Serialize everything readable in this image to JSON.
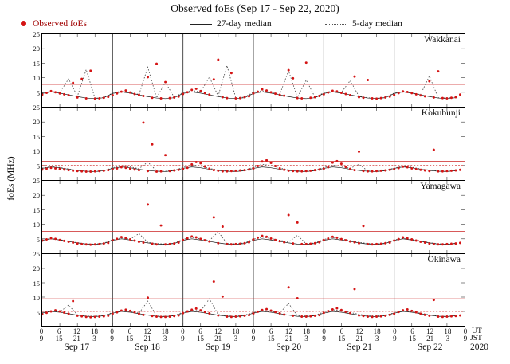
{
  "title": "Observed foEs (Sep 17 - Sep 22, 2020)",
  "legend": {
    "observed": "Observed foEs",
    "median27": "27-day median",
    "median5": "5-day median"
  },
  "y_axis": {
    "label": "foEs (MHz)",
    "ticks": [
      "25",
      "20",
      "15",
      "10",
      "5"
    ],
    "min": 0,
    "max": 25
  },
  "x_axis": {
    "hours_span": 144,
    "tick_step": 6,
    "ut_row": [
      "0",
      "6",
      "12",
      "18",
      "0",
      "6",
      "12",
      "18",
      "0",
      "6",
      "12",
      "18",
      "0",
      "6",
      "12",
      "18",
      "0",
      "6",
      "12",
      "18",
      "0",
      "6",
      "12",
      "18",
      "0"
    ],
    "jst_row": [
      "9",
      "15",
      "21",
      "3",
      "9",
      "15",
      "21",
      "3",
      "9",
      "15",
      "21",
      "3",
      "9",
      "15",
      "21",
      "3",
      "9",
      "15",
      "21",
      "3",
      "9",
      "15",
      "21",
      "3",
      "9"
    ],
    "dates": [
      "Sep 17",
      "Sep 18",
      "Sep 19",
      "Sep 20",
      "Sep 21",
      "Sep 22"
    ],
    "ut_caption": "UT",
    "jst_caption": "JST",
    "year": "2020"
  },
  "colors": {
    "observed": "#d41414",
    "median27": "#1a1a1a",
    "median5": "#555555",
    "threshold": "#cc2222",
    "dayline": "#3a3a3a",
    "tick": "#333333"
  },
  "chart_data": [
    {
      "type": "scatter+line",
      "station": "Wakkanai",
      "observed_interval_h": 1.5,
      "observed_y": [
        4.2,
        4.8,
        5.4,
        5.0,
        4.6,
        4.3,
        4.0,
        8.2,
        3.2,
        9.6,
        2.9,
        12.4,
        2.8,
        2.9,
        3.1,
        3.4,
        4.0,
        4.6,
        5.2,
        5.6,
        4.9,
        4.4,
        4.1,
        3.7,
        10.2,
        3.1,
        14.8,
        2.9,
        8.5,
        3.0,
        3.2,
        3.5,
        4.4,
        5.0,
        5.8,
        6.2,
        5.4,
        4.7,
        4.2,
        9.4,
        16.2,
        3.3,
        3.0,
        11.6,
        2.9,
        3.0,
        3.3,
        3.6,
        4.6,
        5.2,
        6.0,
        5.6,
        5.0,
        4.5,
        4.1,
        3.8,
        12.6,
        9.8,
        3.0,
        2.9,
        15.2,
        3.1,
        3.3,
        3.7,
        4.3,
        4.9,
        5.5,
        5.3,
        4.8,
        4.4,
        4.0,
        10.4,
        3.3,
        3.1,
        9.2,
        2.9,
        2.8,
        3.0,
        3.2,
        3.5,
        4.1,
        4.7,
        5.3,
        5.1,
        4.7,
        4.3,
        3.9,
        3.6,
        8.8,
        3.2,
        12.2,
        3.0,
        2.9,
        3.1,
        3.3,
        4.2
      ],
      "median_interval_h": 3,
      "median27_y": [
        4.6,
        5.1,
        4.7,
        4.1,
        3.5,
        3.0,
        2.8,
        3.1,
        4.6,
        5.1,
        4.7,
        4.1,
        3.5,
        3.0,
        2.8,
        3.1,
        4.6,
        5.1,
        4.7,
        4.1,
        3.5,
        3.0,
        2.8,
        3.1,
        4.6,
        5.1,
        4.7,
        4.1,
        3.5,
        3.0,
        2.8,
        3.1,
        4.6,
        5.1,
        4.7,
        4.1,
        3.5,
        3.0,
        2.8,
        3.1,
        4.6,
        5.1,
        4.7,
        4.1,
        3.5,
        3.0,
        2.8,
        3.1
      ],
      "median5_y": [
        4.8,
        5.3,
        4.9,
        9.6,
        3.6,
        12.8,
        2.9,
        3.2,
        4.7,
        5.4,
        5.0,
        4.2,
        13.6,
        3.1,
        8.4,
        3.3,
        4.9,
        5.6,
        5.1,
        10.2,
        3.7,
        14.2,
        3.0,
        3.3,
        5.0,
        5.5,
        5.0,
        4.3,
        12.4,
        3.2,
        9.2,
        3.3,
        4.8,
        5.4,
        4.9,
        9.0,
        3.6,
        3.1,
        2.9,
        3.2,
        4.7,
        5.2,
        4.8,
        4.2,
        10.6,
        3.1,
        3.0,
        3.3
      ],
      "thresholds_solid": [
        7.7,
        9.2
      ],
      "thresholds_dashed": []
    },
    {
      "type": "scatter+line",
      "station": "Kokubunji",
      "observed_interval_h": 1.5,
      "observed_y": [
        3.6,
        3.9,
        4.2,
        4.0,
        3.8,
        3.6,
        3.4,
        3.2,
        3.1,
        3.0,
        2.9,
        2.9,
        3.0,
        3.1,
        3.2,
        3.4,
        3.7,
        4.0,
        4.4,
        4.2,
        3.9,
        3.6,
        3.4,
        19.8,
        3.1,
        12.3,
        2.9,
        3.0,
        8.6,
        3.1,
        3.3,
        3.5,
        3.8,
        4.2,
        5.4,
        6.2,
        5.8,
        4.6,
        3.9,
        3.4,
        3.2,
        3.0,
        3.0,
        3.1,
        3.2,
        3.3,
        3.4,
        3.6,
        4.0,
        4.8,
        6.4,
        6.8,
        5.9,
        4.8,
        4.0,
        3.5,
        3.2,
        3.1,
        3.0,
        3.0,
        3.1,
        3.2,
        3.4,
        3.6,
        3.9,
        4.4,
        6.0,
        6.5,
        5.6,
        4.5,
        3.8,
        3.4,
        9.8,
        3.1,
        3.0,
        3.0,
        3.1,
        3.2,
        3.3,
        3.5,
        3.7,
        4.1,
        4.6,
        4.4,
        4.0,
        3.7,
        3.5,
        3.3,
        3.1,
        10.4,
        3.0,
        3.0,
        3.1,
        3.2,
        3.3,
        3.5
      ],
      "median_interval_h": 3,
      "median27_y": [
        4.0,
        4.5,
        4.2,
        3.7,
        3.3,
        3.0,
        2.9,
        3.2,
        4.0,
        4.5,
        4.2,
        3.7,
        3.3,
        3.0,
        2.9,
        3.2,
        4.0,
        4.5,
        4.2,
        3.7,
        3.3,
        3.0,
        2.9,
        3.2,
        4.0,
        4.5,
        4.2,
        3.7,
        3.3,
        3.0,
        2.9,
        3.2,
        4.0,
        4.5,
        4.2,
        3.7,
        3.3,
        3.0,
        2.9,
        3.2,
        4.0,
        4.5,
        4.2,
        3.7,
        3.3,
        3.0,
        2.9,
        3.2
      ],
      "median5_y": [
        4.1,
        4.6,
        4.3,
        3.8,
        3.3,
        3.0,
        2.9,
        3.2,
        4.2,
        4.8,
        4.5,
        3.9,
        6.2,
        3.1,
        3.0,
        3.3,
        4.3,
        5.2,
        4.8,
        4.0,
        3.4,
        3.1,
        3.0,
        3.3,
        4.4,
        5.4,
        5.0,
        4.1,
        3.5,
        3.2,
        3.0,
        3.3,
        4.3,
        5.1,
        4.7,
        4.0,
        5.4,
        3.1,
        3.0,
        3.3,
        4.1,
        4.7,
        4.4,
        3.8,
        3.4,
        3.1,
        3.0,
        3.2
      ],
      "thresholds_solid": [
        6.4
      ],
      "thresholds_dashed": [
        5.0
      ]
    },
    {
      "type": "scatter+line",
      "station": "Yamagawa",
      "observed_interval_h": 1.5,
      "observed_y": [
        4.4,
        4.8,
        5.2,
        5.0,
        4.6,
        4.3,
        4.0,
        3.7,
        3.4,
        3.2,
        3.1,
        3.0,
        3.1,
        3.2,
        3.4,
        3.6,
        4.5,
        5.0,
        5.6,
        5.3,
        4.8,
        4.4,
        4.0,
        3.7,
        16.8,
        3.3,
        3.1,
        9.6,
        3.1,
        3.2,
        3.4,
        3.7,
        4.6,
        5.2,
        5.8,
        5.5,
        5.0,
        4.5,
        4.1,
        12.4,
        3.5,
        9.2,
        3.2,
        3.1,
        3.2,
        3.3,
        3.5,
        3.8,
        4.8,
        5.4,
        6.0,
        5.7,
        5.1,
        4.6,
        4.2,
        3.8,
        13.2,
        3.4,
        10.6,
        3.2,
        3.2,
        3.3,
        3.5,
        3.8,
        4.6,
        5.1,
        5.7,
        5.4,
        4.9,
        4.5,
        4.1,
        3.8,
        3.5,
        9.4,
        3.2,
        3.1,
        3.2,
        3.3,
        3.5,
        3.7,
        4.4,
        4.9,
        5.5,
        5.2,
        4.8,
        4.4,
        4.0,
        3.7,
        3.4,
        3.2,
        3.1,
        3.1,
        3.2,
        3.3,
        3.4,
        3.6
      ],
      "median_interval_h": 3,
      "median27_y": [
        4.5,
        5.0,
        4.6,
        4.1,
        3.6,
        3.2,
        3.1,
        3.4,
        4.5,
        5.0,
        4.6,
        4.1,
        3.6,
        3.2,
        3.1,
        3.4,
        4.5,
        5.0,
        4.6,
        4.1,
        3.6,
        3.2,
        3.1,
        3.4,
        4.5,
        5.0,
        4.6,
        4.1,
        3.6,
        3.2,
        3.1,
        3.4,
        4.5,
        5.0,
        4.6,
        4.1,
        3.6,
        3.2,
        3.1,
        3.4,
        4.5,
        5.0,
        4.6,
        4.1,
        3.6,
        3.2,
        3.1,
        3.4
      ],
      "median5_y": [
        4.6,
        5.1,
        4.7,
        4.2,
        3.7,
        3.3,
        3.2,
        3.5,
        4.7,
        5.3,
        4.9,
        6.8,
        3.8,
        3.4,
        3.2,
        3.5,
        4.8,
        5.5,
        5.0,
        4.4,
        7.4,
        3.4,
        3.3,
        3.6,
        4.9,
        5.6,
        5.1,
        4.5,
        3.9,
        6.2,
        3.3,
        3.6,
        4.8,
        5.4,
        5.0,
        4.4,
        3.8,
        3.4,
        3.3,
        3.5,
        4.6,
        5.2,
        4.8,
        4.3,
        3.7,
        3.3,
        3.2,
        3.5
      ],
      "thresholds_solid": [
        7.6
      ],
      "thresholds_dashed": []
    },
    {
      "type": "scatter+line",
      "station": "Okinawa",
      "observed_interval_h": 1.5,
      "observed_y": [
        4.0,
        4.5,
        5.0,
        5.4,
        5.0,
        4.6,
        4.2,
        8.6,
        3.5,
        3.3,
        3.1,
        3.0,
        3.1,
        3.2,
        3.3,
        3.5,
        4.2,
        4.7,
        5.3,
        5.6,
        5.2,
        4.7,
        4.2,
        3.8,
        9.8,
        3.4,
        3.2,
        3.1,
        3.1,
        3.2,
        3.4,
        3.6,
        4.4,
        5.0,
        5.6,
        6.0,
        5.4,
        4.8,
        4.3,
        15.4,
        3.6,
        10.2,
        3.2,
        3.1,
        3.2,
        3.3,
        3.5,
        3.7,
        4.3,
        4.9,
        5.5,
        5.8,
        5.3,
        4.8,
        4.3,
        3.9,
        13.4,
        3.5,
        9.6,
        3.2,
        3.2,
        3.3,
        3.5,
        3.7,
        4.5,
        5.1,
        5.7,
        6.1,
        5.5,
        4.9,
        4.4,
        12.8,
        3.6,
        3.4,
        3.2,
        3.1,
        3.2,
        3.3,
        3.5,
        3.8,
        4.2,
        4.8,
        5.4,
        5.7,
        5.2,
        4.7,
        4.2,
        3.8,
        3.5,
        9.0,
        3.2,
        3.1,
        3.2,
        3.3,
        3.4,
        3.6
      ],
      "median_interval_h": 3,
      "median27_y": [
        4.4,
        5.0,
        4.7,
        4.2,
        3.7,
        3.3,
        3.2,
        3.5,
        4.4,
        5.0,
        4.7,
        4.2,
        3.7,
        3.3,
        3.2,
        3.5,
        4.4,
        5.0,
        4.7,
        4.2,
        3.7,
        3.3,
        3.2,
        3.5,
        4.4,
        5.0,
        4.7,
        4.2,
        3.7,
        3.3,
        3.2,
        3.5,
        4.4,
        5.0,
        4.7,
        4.2,
        3.7,
        3.3,
        3.2,
        3.5,
        4.4,
        5.0,
        4.7,
        4.2,
        3.7,
        3.3,
        3.2,
        3.5
      ],
      "median5_y": [
        4.5,
        5.1,
        4.8,
        7.2,
        3.8,
        3.4,
        3.3,
        3.6,
        4.6,
        5.3,
        5.0,
        4.4,
        8.6,
        3.4,
        3.3,
        3.6,
        4.7,
        5.5,
        5.1,
        9.4,
        3.9,
        3.5,
        3.3,
        3.7,
        4.6,
        5.4,
        5.0,
        4.5,
        7.8,
        3.5,
        3.4,
        3.6,
        4.8,
        5.6,
        5.2,
        4.6,
        4.0,
        3.5,
        3.4,
        3.7,
        4.5,
        5.2,
        4.9,
        4.4,
        3.8,
        3.4,
        3.3,
        3.6
      ],
      "thresholds_solid": [
        7.9,
        9.4
      ],
      "thresholds_dashed": [
        5.0
      ]
    }
  ]
}
